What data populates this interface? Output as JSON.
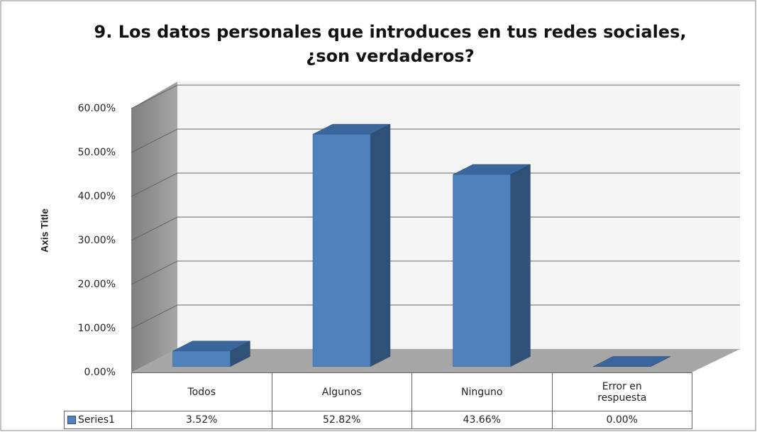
{
  "chart_data": {
    "type": "bar3d",
    "title": "9. Los datos personales que introduces en tus redes sociales, ¿son verdaderos?",
    "y_axis_title": "Axis Title",
    "categories": [
      "Todos",
      "Algunos",
      "Ninguno",
      "Error en respuesta"
    ],
    "series": [
      {
        "name": "Series1",
        "color": "#4f81bd",
        "values": [
          3.52,
          52.82,
          43.66,
          0
        ],
        "value_labels": [
          "3.52%",
          "52.82%",
          "43.66%",
          "0.00%"
        ]
      }
    ],
    "ylim": [
      0,
      60
    ],
    "yticks": [
      {
        "value": 0,
        "label": "0.00%"
      },
      {
        "value": 10,
        "label": "10.00%"
      },
      {
        "value": 20,
        "label": "20.00%"
      },
      {
        "value": 30,
        "label": "30.00%"
      },
      {
        "value": 40,
        "label": "40.00%"
      },
      {
        "value": 50,
        "label": "50.00%"
      },
      {
        "value": 60,
        "label": "60.00%"
      }
    ],
    "grid": true
  }
}
